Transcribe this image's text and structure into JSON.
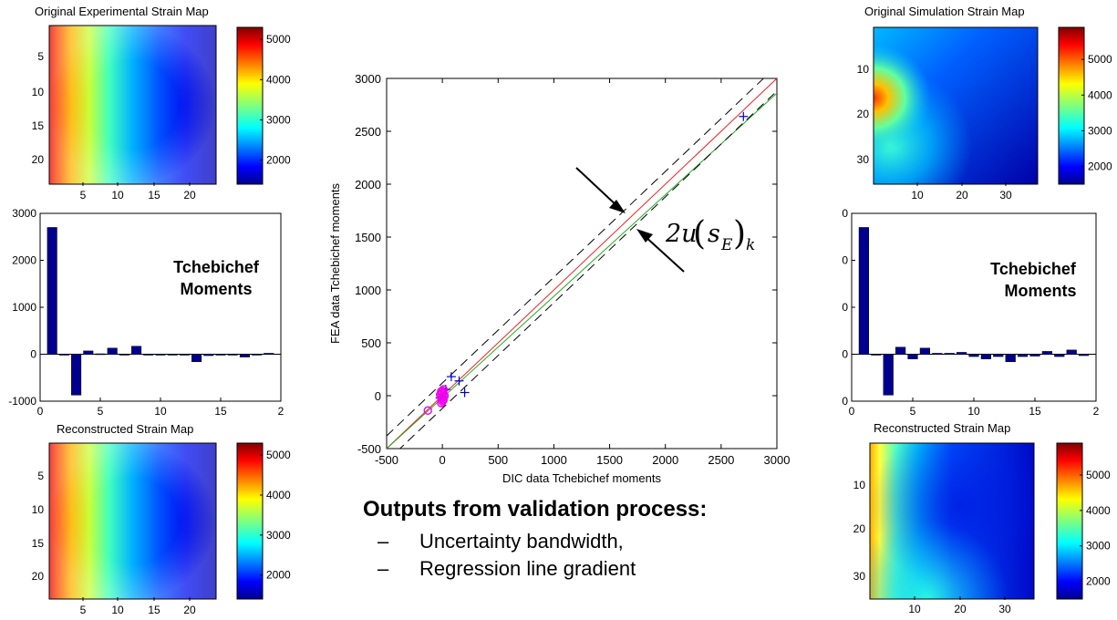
{
  "panels": {
    "exp_strain_title": "Original Experimental Strain Map",
    "sim_strain_title": "Original Simulation Strain Map",
    "exp_recon_title": "Reconstructed Strain Map",
    "sim_recon_title": "Reconstructed Strain Map",
    "tcheb_line1": "Tchebichef",
    "tcheb_line2": "Moments"
  },
  "annotation": {
    "formula_main": "2u",
    "formula_s": "s",
    "formula_E": "E",
    "formula_k": "k"
  },
  "outputs": {
    "title": "Outputs from validation process:",
    "items": [
      {
        "dash": "–",
        "text": "Uncertainty bandwidth,"
      },
      {
        "dash": "–",
        "text": "Regression line gradient"
      }
    ]
  },
  "chart_data": [
    {
      "id": "exp-strain-map",
      "type": "heatmap",
      "title": "Original Experimental Strain Map",
      "x_ticks": [
        "5",
        "10",
        "15",
        "20"
      ],
      "y_ticks": [
        "5",
        "10",
        "15",
        "20"
      ],
      "colorbar_ticks": [
        "5000",
        "4000",
        "3000",
        "2000"
      ],
      "colorbar_range": [
        1400,
        5300
      ],
      "colormap": "jet"
    },
    {
      "id": "exp-moments",
      "type": "bar",
      "title": "",
      "x_ticks": [
        "0",
        "5",
        "10",
        "15",
        "2"
      ],
      "y_ticks": [
        "3000",
        "2000",
        "1000",
        "0",
        "-1000"
      ],
      "ylim": [
        -1000,
        3000
      ],
      "xlim": [
        0,
        20
      ],
      "x": [
        1,
        2,
        3,
        4,
        5,
        6,
        7,
        8,
        9,
        10,
        11,
        12,
        13,
        14,
        15,
        16,
        17,
        18,
        19
      ],
      "values": [
        2700,
        -20,
        -870,
        70,
        10,
        130,
        0,
        170,
        0,
        0,
        0,
        -20,
        -160,
        -30,
        -20,
        0,
        -60,
        0,
        20
      ],
      "annotation": "Tchebichef Moments"
    },
    {
      "id": "exp-recon-map",
      "type": "heatmap",
      "title": "Reconstructed Strain Map",
      "x_ticks": [
        "5",
        "10",
        "15",
        "20"
      ],
      "y_ticks": [
        "5",
        "10",
        "15",
        "20"
      ],
      "colorbar_ticks": [
        "5000",
        "4000",
        "3000",
        "2000"
      ],
      "colorbar_range": [
        1400,
        5300
      ],
      "colormap": "jet"
    },
    {
      "id": "validation-scatter",
      "type": "scatter",
      "title": "",
      "xlabel": "DIC data Tchebichef moments",
      "ylabel": "FEA data Tchebichef moments",
      "xlim": [
        -500,
        3000
      ],
      "ylim": [
        -500,
        3000
      ],
      "x_ticks": [
        "-500",
        "0",
        "500",
        "1000",
        "1500",
        "2000",
        "2500",
        "3000"
      ],
      "y_ticks": [
        "-500",
        "0",
        "500",
        "1000",
        "1500",
        "2000",
        "2500",
        "3000"
      ],
      "series": [
        {
          "marker": "plus",
          "color": "#0000cc",
          "points": [
            [
              2700,
              2640
            ],
            [
              80,
              180
            ],
            [
              150,
              140
            ],
            [
              200,
              30
            ],
            [
              -20,
              -20
            ],
            [
              30,
              60
            ]
          ]
        },
        {
          "marker": "circle",
          "color": "#ee00ee",
          "points": [
            [
              -130,
              -140
            ],
            [
              10,
              -40
            ],
            [
              -10,
              40
            ],
            [
              20,
              0
            ],
            [
              0,
              -20
            ],
            [
              -20,
              10
            ],
            [
              10,
              60
            ],
            [
              -10,
              -70
            ]
          ]
        }
      ],
      "lines": [
        {
          "kind": "identity",
          "color": "#ee2222",
          "from": [
            -500,
            -500
          ],
          "to": [
            3000,
            3000
          ]
        },
        {
          "kind": "regression",
          "color": "#22aa22",
          "from": [
            -500,
            -500
          ],
          "to": [
            3000,
            2860
          ]
        },
        {
          "kind": "upper-bound",
          "color": "#000000",
          "dash": true,
          "from": [
            -500,
            -380
          ],
          "to": [
            3000,
            3120
          ]
        },
        {
          "kind": "lower-bound",
          "color": "#000000",
          "dash": true,
          "from": [
            -500,
            -620
          ],
          "to": [
            3000,
            2880
          ]
        }
      ]
    },
    {
      "id": "sim-strain-map",
      "type": "heatmap",
      "title": "Original Simulation Strain Map",
      "x_ticks": [
        "10",
        "20",
        "30"
      ],
      "y_ticks": [
        "10",
        "20",
        "30"
      ],
      "colorbar_ticks": [
        "5000",
        "4000",
        "3000",
        "2000"
      ],
      "colorbar_range": [
        1500,
        5900
      ],
      "colormap": "jet"
    },
    {
      "id": "sim-moments",
      "type": "bar",
      "title": "",
      "x_ticks": [
        "0",
        "5",
        "10",
        "15",
        "2"
      ],
      "y_ticks": [
        "0",
        "0",
        "0",
        "0",
        "0"
      ],
      "ylim": [
        -1000,
        3000
      ],
      "xlim": [
        0,
        20
      ],
      "x": [
        1,
        2,
        3,
        4,
        5,
        6,
        7,
        8,
        9,
        10,
        11,
        12,
        13,
        14,
        15,
        16,
        17,
        18,
        19
      ],
      "values": [
        2700,
        -20,
        -870,
        150,
        -100,
        130,
        20,
        20,
        40,
        -50,
        -100,
        -50,
        -160,
        -50,
        -40,
        60,
        -50,
        90,
        -30
      ],
      "annotation": "Tchebichef Moments"
    },
    {
      "id": "sim-recon-map",
      "type": "heatmap",
      "title": "Reconstructed Strain Map",
      "x_ticks": [
        "10",
        "20",
        "30"
      ],
      "y_ticks": [
        "10",
        "20",
        "30"
      ],
      "colorbar_ticks": [
        "5000",
        "4000",
        "3000",
        "2000"
      ],
      "colorbar_range": [
        1500,
        5900
      ],
      "colormap": "jet"
    }
  ]
}
